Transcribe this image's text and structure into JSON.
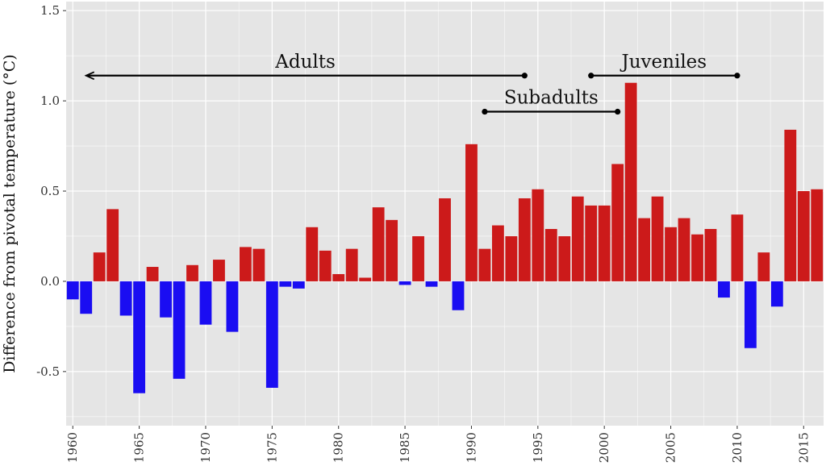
{
  "chart_data": {
    "type": "bar",
    "title": "",
    "xlabel": "",
    "ylabel": "Difference from pivotal temperature (°C)",
    "ylim": [
      -0.8,
      1.55
    ],
    "xlim": [
      1959.5,
      2016.5
    ],
    "y_ticks": [
      -0.5,
      0.0,
      0.5,
      1.0,
      1.5
    ],
    "y_tick_labels": [
      "-0.5",
      "0.0",
      "0.5",
      "1.0",
      "1.5"
    ],
    "x_ticks": [
      1960,
      1965,
      1970,
      1975,
      1980,
      1985,
      1990,
      1995,
      2000,
      2005,
      2010,
      2015
    ],
    "x_tick_labels": [
      "1960",
      "1965",
      "1970",
      "1975",
      "1980",
      "1985",
      "1990",
      "1995",
      "2000",
      "2005",
      "2010",
      "2015"
    ],
    "grid": true,
    "colors": {
      "positive": "#cc1a1a",
      "negative": "#1a0df2",
      "panel": "#e5e5e5",
      "grid": "#ffffff"
    },
    "x": [
      1960,
      1961,
      1962,
      1963,
      1964,
      1965,
      1966,
      1967,
      1968,
      1969,
      1970,
      1971,
      1972,
      1973,
      1974,
      1975,
      1976,
      1977,
      1978,
      1979,
      1980,
      1981,
      1982,
      1983,
      1984,
      1985,
      1986,
      1987,
      1988,
      1989,
      1990,
      1991,
      1992,
      1993,
      1994,
      1995,
      1996,
      1997,
      1998,
      1999,
      2000,
      2001,
      2002,
      2003,
      2004,
      2005,
      2006,
      2007,
      2008,
      2009,
      2010,
      2011,
      2012,
      2013,
      2014,
      2015,
      2016
    ],
    "values": [
      -0.1,
      -0.18,
      0.16,
      0.4,
      -0.19,
      -0.62,
      0.08,
      -0.2,
      -0.54,
      0.09,
      -0.24,
      0.12,
      -0.28,
      0.19,
      0.18,
      -0.59,
      -0.03,
      -0.04,
      0.3,
      0.17,
      0.04,
      0.18,
      0.02,
      0.41,
      0.34,
      -0.02,
      0.25,
      -0.03,
      0.46,
      -0.16,
      0.76,
      0.18,
      0.31,
      0.25,
      0.46,
      0.51,
      0.29,
      0.25,
      0.47,
      0.42,
      0.42,
      0.65,
      1.1,
      0.35,
      0.47,
      0.3,
      0.35,
      0.26,
      0.29,
      -0.09,
      0.37,
      -0.37,
      0.16,
      -0.14,
      0.84,
      0.5,
      0.51
    ],
    "annotations": [
      {
        "label": "Adults",
        "from": 1961,
        "to": 1994,
        "y": 1.14,
        "start_marker": "arrow",
        "end_marker": "dot"
      },
      {
        "label": "Subadults",
        "from": 1991,
        "to": 2001,
        "y": 0.94,
        "start_marker": "dot",
        "end_marker": "dot"
      },
      {
        "label": "Juveniles",
        "from": 1999,
        "to": 2010,
        "y": 1.14,
        "start_marker": "dot",
        "end_marker": "dot"
      }
    ]
  }
}
